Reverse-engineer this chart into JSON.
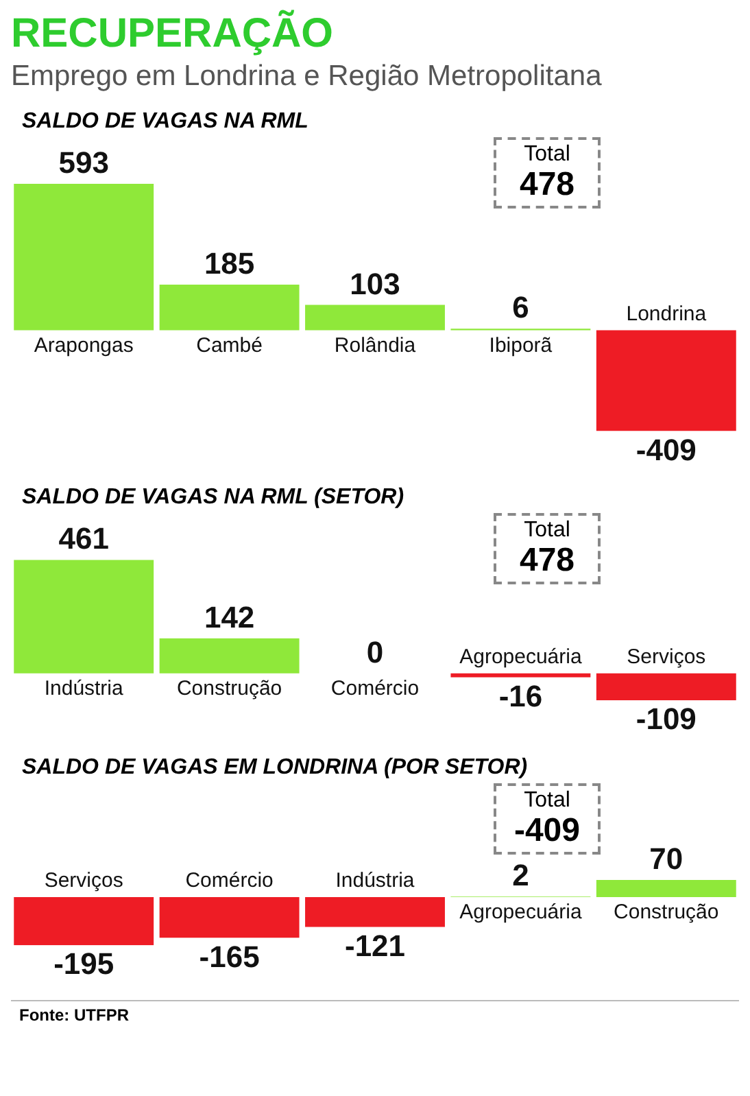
{
  "chart_data": [
    {
      "type": "bar",
      "title": "RECUPERAÇÃO",
      "subtitle": "Emprego em Londrina e Região Metropolitana",
      "categories": [
        "Arapongas",
        "Cambé",
        "Rolândia",
        "Ibiporã",
        "Londrina"
      ],
      "values": [
        593,
        185,
        103,
        6,
        -409
      ],
      "colors": [
        "#8fe83a",
        "#8fe83a",
        "#8fe83a",
        "#8fe83a",
        "#ee1c25"
      ],
      "data_labels": true,
      "annotations": [
        "SALDO DE VAGAS NA RML",
        "Total\n478"
      ]
    },
    {
      "type": "bar",
      "categories": [
        "Indústria",
        "Construção",
        "Comércio",
        "Agropecuária",
        "Serviços"
      ],
      "values": [
        461,
        142,
        0,
        -16,
        -109
      ],
      "colors": [
        "#8fe83a",
        "#8fe83a",
        "#999999",
        "#ee1c25",
        "#ee1c25"
      ],
      "data_labels": true,
      "annotations": [
        "SALDO DE VAGAS NA RML (SETOR)",
        "Total\n478"
      ]
    },
    {
      "type": "bar",
      "categories": [
        "Serviços",
        "Comércio",
        "Indústria",
        "Agropecuária",
        "Construção"
      ],
      "values": [
        -195,
        -165,
        -121,
        2,
        70
      ],
      "colors": [
        "#ee1c25",
        "#ee1c25",
        "#ee1c25",
        "#8fe83a",
        "#8fe83a"
      ],
      "data_labels": true,
      "annotations": [
        "SALDO DE VAGAS EM LONDRINA (POR SETOR)",
        "Total\n-409",
        "Fonte: UTFPR"
      ]
    }
  ]
}
